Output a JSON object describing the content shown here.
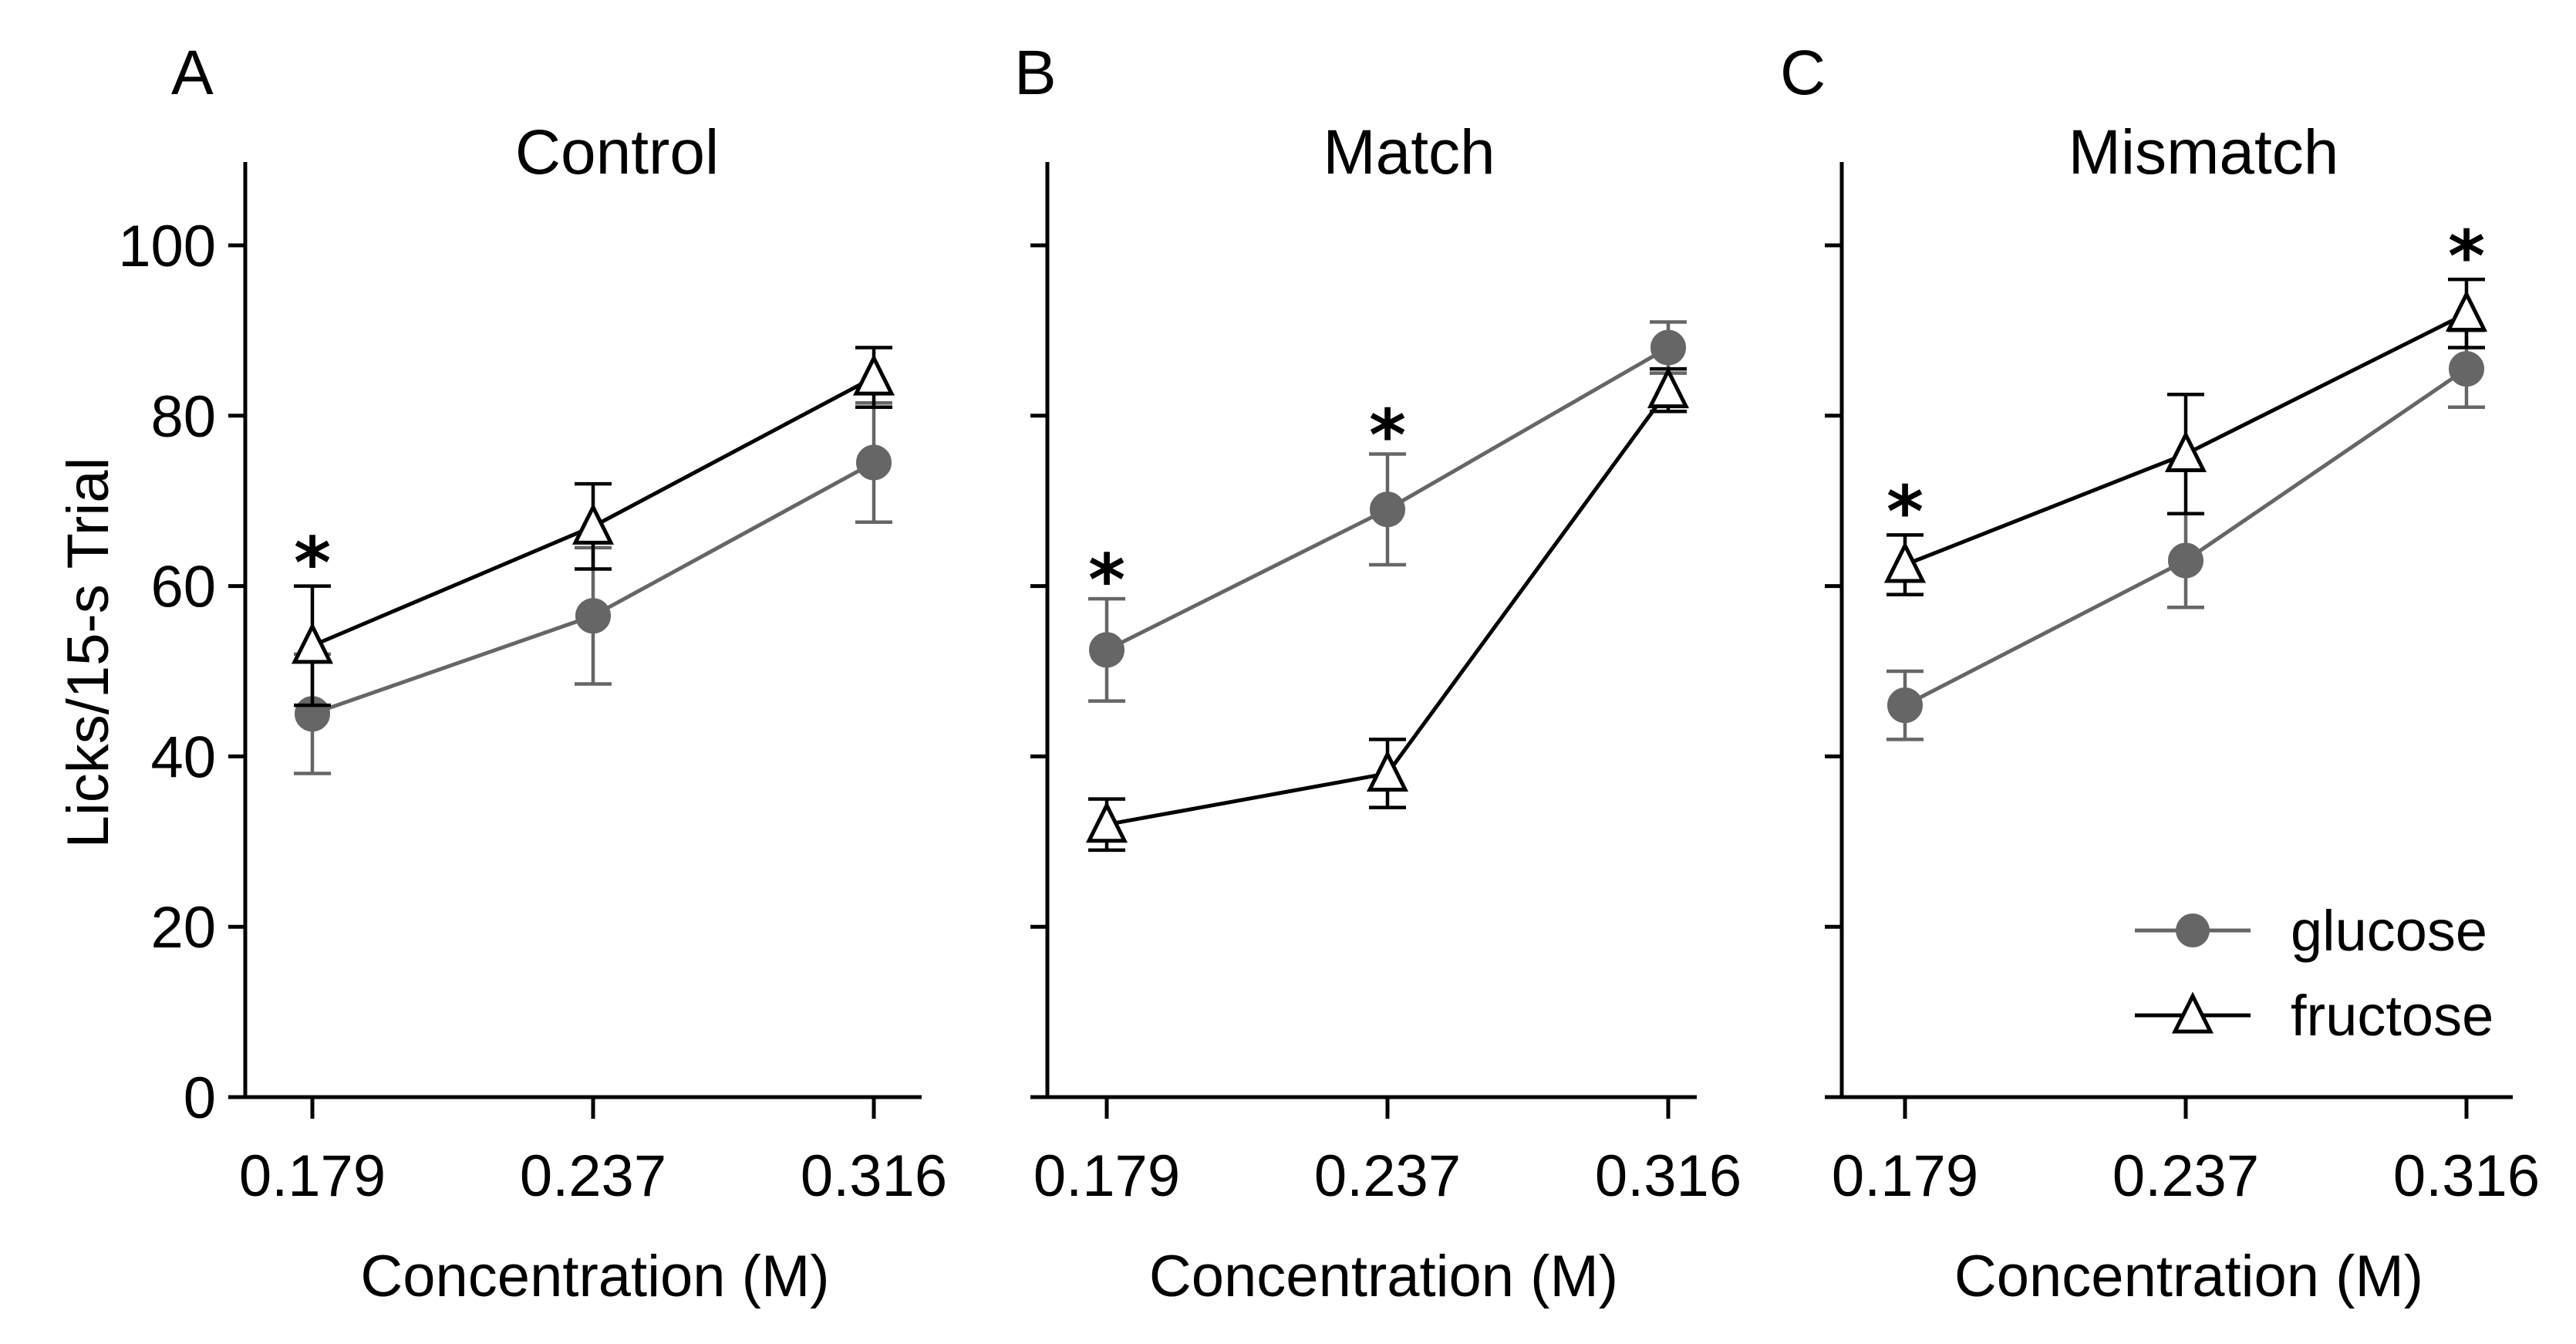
{
  "chart_data": [
    {
      "type": "line",
      "panel": "A",
      "title": "Control",
      "xlabel": "Concentration (M)",
      "ylabel": "Licks/15-s  Trial",
      "ylim": [
        0,
        110
      ],
      "x_ticks": [
        "0.179",
        "0.237",
        "0.316"
      ],
      "y_ticks": [
        0,
        20,
        40,
        60,
        80,
        100
      ],
      "grid": false,
      "series": [
        {
          "name": "glucose",
          "color": "#666666",
          "marker": "filled-circle",
          "y": [
            45,
            56.5,
            74.5
          ],
          "err": [
            7,
            8,
            7
          ]
        },
        {
          "name": "fructose",
          "color": "#000000",
          "marker": "open-triangle",
          "y": [
            53,
            67,
            84.5
          ],
          "err": [
            7,
            5,
            3.5
          ]
        }
      ],
      "annotations": [
        {
          "text": "*",
          "x_index": 0,
          "y": 64
        }
      ]
    },
    {
      "type": "line",
      "panel": "B",
      "title": "Match",
      "xlabel": "Concentration (M)",
      "ylim": [
        0,
        110
      ],
      "x_ticks": [
        "0.179",
        "0.237",
        "0.316"
      ],
      "grid": false,
      "series": [
        {
          "name": "glucose",
          "color": "#666666",
          "marker": "filled-circle",
          "y": [
            52.5,
            69,
            88
          ],
          "err": [
            6,
            6.5,
            3
          ]
        },
        {
          "name": "fructose",
          "color": "#000000",
          "marker": "open-triangle",
          "y": [
            32,
            38,
            83
          ],
          "err": [
            3,
            4,
            2.5
          ]
        }
      ],
      "annotations": [
        {
          "text": "*",
          "x_index": 0,
          "y": 62
        },
        {
          "text": "*",
          "x_index": 1,
          "y": 79
        }
      ]
    },
    {
      "type": "line",
      "panel": "C",
      "title": "Mismatch",
      "xlabel": "Concentration (M)",
      "ylim": [
        0,
        110
      ],
      "x_ticks": [
        "0.179",
        "0.237",
        "0.316"
      ],
      "grid": false,
      "legend": {
        "position": "bottom-right",
        "entries": [
          "glucose",
          "fructose"
        ]
      },
      "series": [
        {
          "name": "glucose",
          "color": "#666666",
          "marker": "filled-circle",
          "y": [
            46,
            63,
            85.5
          ],
          "err": [
            4,
            5.5,
            4.5
          ]
        },
        {
          "name": "fructose",
          "color": "#000000",
          "marker": "open-triangle",
          "y": [
            62.5,
            75.5,
            92
          ],
          "err": [
            3.5,
            7,
            4
          ]
        }
      ],
      "annotations": [
        {
          "text": "*",
          "x_index": 0,
          "y": 70
        },
        {
          "text": "*",
          "x_index": 2,
          "y": 100
        }
      ]
    }
  ]
}
